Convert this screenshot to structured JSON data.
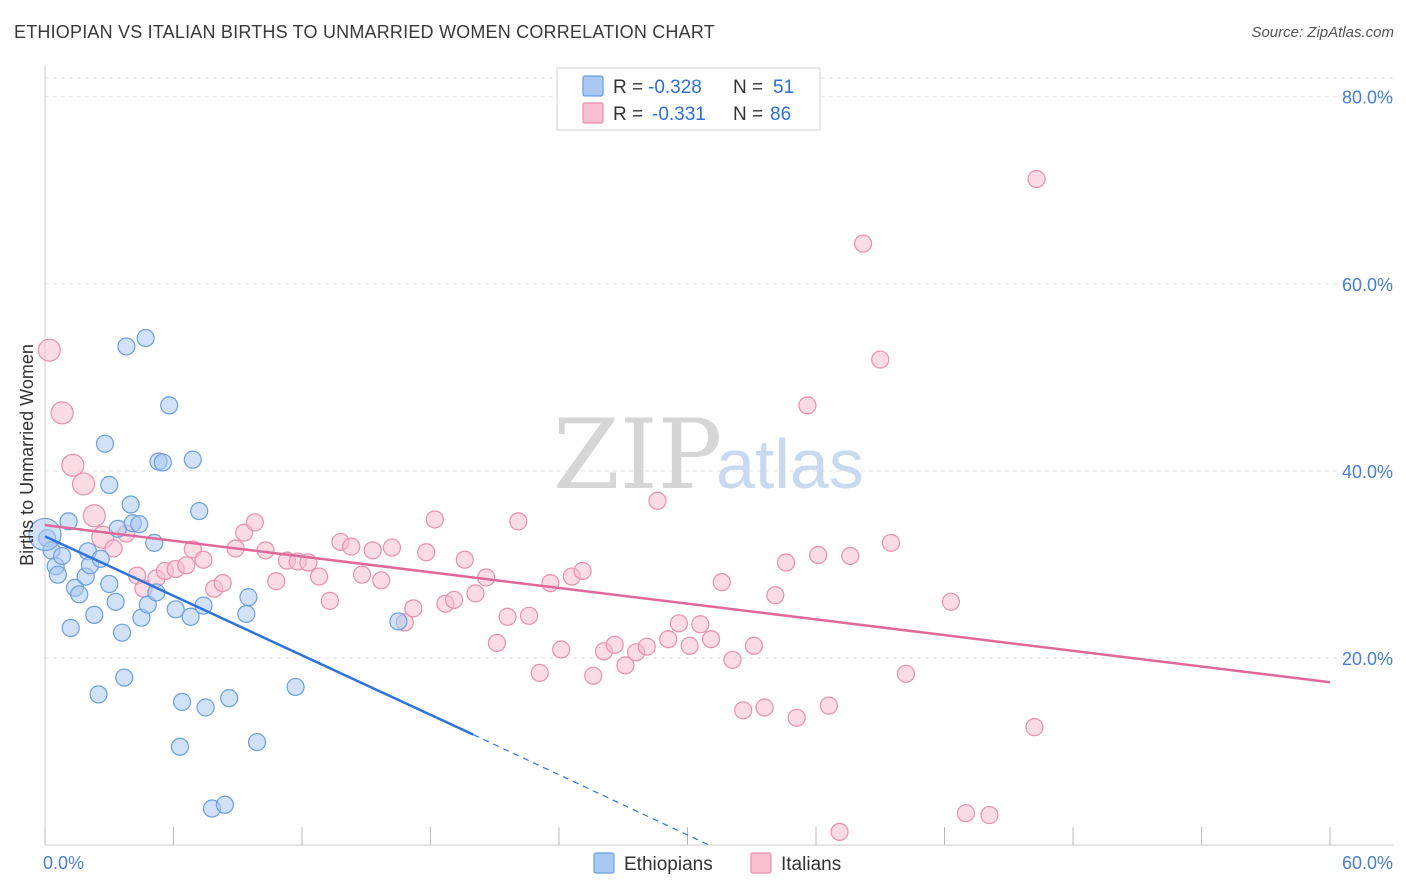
{
  "title": "ETHIOPIAN VS ITALIAN BIRTHS TO UNMARRIED WOMEN CORRELATION CHART",
  "source": "Source: ZipAtlas.com",
  "watermark": {
    "part1": "ZIP",
    "part2": "atlas"
  },
  "colors": {
    "ethiopians_fill": "#a9c8f2",
    "ethiopians_stroke": "#6b9fe0",
    "ethiopians_line": "#2f73d6",
    "italians_fill": "#f7bfd0",
    "italians_stroke": "#ea8fae",
    "italians_line": "#e0699a",
    "tick_text": "#4a7fd0",
    "grid": "#e3e3e3"
  },
  "legend": {
    "rows": [
      {
        "r_label": "R =",
        "r_value": "-0.328",
        "n_label": "N =",
        "n_value": "51"
      },
      {
        "r_label": "R =",
        "r_value": "-0.331",
        "n_label": "N =",
        "n_value": "86"
      }
    ]
  },
  "bottom_legend": [
    "Ethiopians",
    "Italians"
  ],
  "chart_data": {
    "type": "scatter",
    "title": "ETHIOPIAN VS ITALIAN BIRTHS TO UNMARRIED WOMEN CORRELATION CHART",
    "xlabel": "",
    "ylabel": "Births to Unmarried Women",
    "xlim": [
      0,
      60
    ],
    "ylim": [
      0,
      82
    ],
    "x_tick_labels": [
      "0.0%",
      "60.0%"
    ],
    "y_ticks": [
      20,
      40,
      60,
      80
    ],
    "y_tick_labels": [
      "20.0%",
      "40.0%",
      "60.0%",
      "80.0%"
    ],
    "grid": true,
    "legend_position": "top-center",
    "series": [
      {
        "name": "Ethiopians",
        "r": -0.328,
        "n": 51,
        "trendline": {
          "x": [
            0,
            20
          ],
          "y": [
            33,
            11.8
          ]
        },
        "trendline_dashed": {
          "x": [
            20,
            31
          ],
          "y": [
            11.8,
            0
          ]
        },
        "points": [
          [
            0.1,
            32.8
          ],
          [
            0.3,
            31.5
          ],
          [
            0.5,
            29.8
          ],
          [
            0.6,
            28.9
          ],
          [
            0.8,
            30.9
          ],
          [
            1.1,
            34.6
          ],
          [
            1.2,
            23.2
          ],
          [
            1.4,
            27.5
          ],
          [
            1.6,
            26.8
          ],
          [
            1.9,
            28.7
          ],
          [
            2.0,
            31.4
          ],
          [
            2.1,
            29.9
          ],
          [
            2.3,
            24.6
          ],
          [
            2.5,
            16.1
          ],
          [
            2.6,
            30.6
          ],
          [
            2.8,
            42.9
          ],
          [
            3.0,
            38.5
          ],
          [
            3.0,
            27.9
          ],
          [
            3.3,
            26.0
          ],
          [
            3.4,
            33.8
          ],
          [
            3.6,
            22.7
          ],
          [
            3.7,
            17.9
          ],
          [
            3.8,
            53.3
          ],
          [
            4.0,
            36.4
          ],
          [
            4.1,
            34.4
          ],
          [
            4.4,
            34.3
          ],
          [
            4.5,
            24.3
          ],
          [
            4.7,
            54.2
          ],
          [
            4.8,
            25.7
          ],
          [
            5.1,
            32.3
          ],
          [
            5.2,
            27.0
          ],
          [
            5.3,
            41.0
          ],
          [
            5.5,
            40.9
          ],
          [
            5.8,
            47.0
          ],
          [
            6.1,
            25.2
          ],
          [
            6.3,
            10.5
          ],
          [
            6.4,
            15.3
          ],
          [
            6.8,
            24.4
          ],
          [
            6.9,
            41.2
          ],
          [
            7.2,
            35.7
          ],
          [
            7.4,
            25.6
          ],
          [
            7.5,
            14.7
          ],
          [
            7.8,
            3.9
          ],
          [
            8.4,
            4.3
          ],
          [
            8.6,
            15.7
          ],
          [
            9.4,
            24.7
          ],
          [
            9.5,
            26.5
          ],
          [
            9.9,
            11.0
          ],
          [
            11.7,
            16.9
          ],
          [
            16.5,
            23.9
          ],
          [
            0.0,
            33.2
          ]
        ]
      },
      {
        "name": "Italians",
        "r": -0.331,
        "n": 86,
        "trendline": {
          "x": [
            0,
            60
          ],
          "y": [
            34.2,
            17.4
          ]
        },
        "points": [
          [
            0.2,
            52.9
          ],
          [
            0.8,
            46.2
          ],
          [
            1.3,
            40.6
          ],
          [
            1.8,
            38.6
          ],
          [
            2.3,
            35.2
          ],
          [
            2.7,
            32.9
          ],
          [
            3.2,
            31.7
          ],
          [
            3.8,
            33.3
          ],
          [
            4.3,
            28.8
          ],
          [
            4.6,
            27.4
          ],
          [
            5.2,
            28.5
          ],
          [
            5.6,
            29.3
          ],
          [
            6.1,
            29.5
          ],
          [
            6.6,
            29.9
          ],
          [
            6.9,
            31.6
          ],
          [
            7.4,
            30.5
          ],
          [
            7.9,
            27.4
          ],
          [
            8.3,
            28.0
          ],
          [
            8.9,
            31.7
          ],
          [
            9.3,
            33.4
          ],
          [
            9.8,
            34.5
          ],
          [
            10.3,
            31.5
          ],
          [
            10.8,
            28.2
          ],
          [
            11.3,
            30.4
          ],
          [
            11.8,
            30.3
          ],
          [
            12.3,
            30.2
          ],
          [
            12.8,
            28.7
          ],
          [
            13.3,
            26.1
          ],
          [
            13.8,
            32.4
          ],
          [
            14.3,
            31.9
          ],
          [
            14.8,
            28.9
          ],
          [
            15.3,
            31.5
          ],
          [
            15.7,
            28.3
          ],
          [
            16.2,
            31.8
          ],
          [
            16.8,
            23.8
          ],
          [
            17.2,
            25.3
          ],
          [
            17.8,
            31.3
          ],
          [
            18.2,
            34.8
          ],
          [
            18.7,
            25.8
          ],
          [
            19.1,
            26.2
          ],
          [
            19.6,
            30.5
          ],
          [
            20.1,
            26.9
          ],
          [
            20.6,
            28.6
          ],
          [
            21.1,
            21.6
          ],
          [
            21.6,
            24.4
          ],
          [
            22.1,
            34.6
          ],
          [
            22.6,
            24.5
          ],
          [
            23.1,
            18.4
          ],
          [
            23.6,
            28.0
          ],
          [
            24.1,
            20.9
          ],
          [
            24.6,
            28.7
          ],
          [
            25.1,
            29.3
          ],
          [
            25.6,
            18.1
          ],
          [
            26.1,
            20.7
          ],
          [
            26.6,
            21.4
          ],
          [
            27.1,
            19.2
          ],
          [
            27.6,
            20.6
          ],
          [
            28.1,
            21.2
          ],
          [
            28.6,
            36.8
          ],
          [
            29.1,
            22.0
          ],
          [
            29.6,
            23.7
          ],
          [
            30.1,
            21.3
          ],
          [
            30.6,
            23.6
          ],
          [
            31.1,
            22.0
          ],
          [
            31.6,
            28.1
          ],
          [
            32.1,
            19.8
          ],
          [
            32.6,
            14.4
          ],
          [
            33.1,
            21.3
          ],
          [
            33.6,
            14.7
          ],
          [
            34.1,
            26.7
          ],
          [
            34.6,
            30.2
          ],
          [
            35.1,
            13.6
          ],
          [
            35.6,
            47.0
          ],
          [
            36.1,
            31.0
          ],
          [
            36.6,
            14.9
          ],
          [
            37.1,
            1.4
          ],
          [
            37.6,
            30.9
          ],
          [
            38.2,
            64.3
          ],
          [
            39.0,
            51.9
          ],
          [
            39.5,
            32.3
          ],
          [
            40.2,
            18.3
          ],
          [
            42.3,
            26.0
          ],
          [
            43.0,
            3.4
          ],
          [
            44.1,
            3.2
          ],
          [
            46.2,
            12.6
          ],
          [
            46.3,
            71.2
          ]
        ]
      }
    ]
  }
}
